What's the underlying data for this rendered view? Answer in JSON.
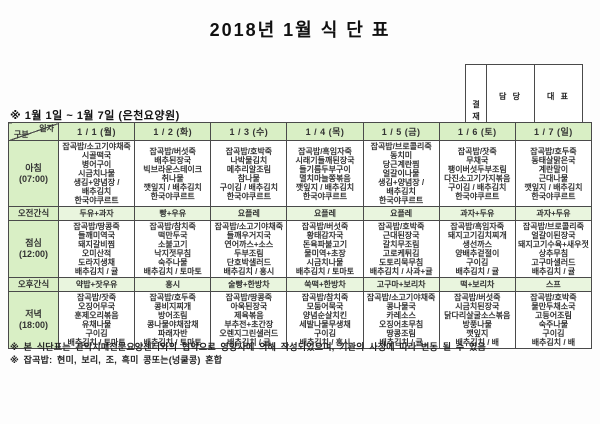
{
  "title": "2018년 1월 식 단 표",
  "approval": {
    "stamp_label": "결재",
    "columns": [
      "담 당",
      "대 표"
    ]
  },
  "period_note": "※ 1월 1일 ~ 1월 7일 (은천요양원)",
  "table": {
    "corner": {
      "top": "일자",
      "bottom": "구분"
    },
    "day_headers": [
      "1 / 1 (월)",
      "1 / 2 (화)",
      "1 / 3 (수)",
      "1 / 4 (목)",
      "1 / 5 (금)",
      "1 / 6 (토)",
      "1 / 7 (일)"
    ],
    "rows": [
      {
        "label": "아침",
        "time": "(07:00)",
        "type": "meal",
        "cells": [
          [
            "잡곡밥/소고기야채죽",
            "시골떡국",
            "병어구이",
            "시금치나물",
            "생김+양념장 /",
            "배추김치",
            "한국야쿠르트"
          ],
          [
            "잡곡밥/버섯죽",
            "배추된장국",
            "빅브라운스테이크",
            "취나물",
            "깻잎지 / 배추김치",
            "한국야쿠르트"
          ],
          [
            "잡곡밥/호박죽",
            "나박물김치",
            "메추리알조림",
            "참나물",
            "구이김 / 배추김치",
            "한국야쿠르트"
          ],
          [
            "잡곡밥/흑임자죽",
            "시래기들깨된장국",
            "들기름두부구이",
            "멸치마늘쫑볶음",
            "깻잎지 / 배추김치",
            "한국야쿠르트"
          ],
          [
            "잡곡밥/브로콜리죽",
            "동치미",
            "당근계란찜",
            "얼갈이나물",
            "생김+양념장 /",
            "배추김치",
            "한국야쿠르트"
          ],
          [
            "잡곡밥/잣죽",
            "무채국",
            "팽이버섯두부조림",
            "다진소고기가지볶음",
            "구이김 / 배추김치",
            "한국야쿠르트"
          ],
          [
            "잡곡밥/호두죽",
            "동태살맑은국",
            "계란말이",
            "근대나물",
            "깻잎지 / 배추김치",
            "한국야쿠르트"
          ]
        ]
      },
      {
        "label": "오전간식",
        "type": "snack",
        "cells": [
          "두유+과자",
          "빵+우유",
          "요플레",
          "요플레",
          "요플레",
          "과자+두유",
          "과자+두유"
        ]
      },
      {
        "label": "점심",
        "time": "(12:00)",
        "type": "meal",
        "cells": [
          [
            "잡곡밥/땅콩죽",
            "들깨미역국",
            "돼지갈비찜",
            "오미산적",
            "도라지생채",
            "배추김치 / 귤"
          ],
          [
            "잡곡밥/참치죽",
            "떡만두국",
            "소불고기",
            "낙지젓무침",
            "숙주나물",
            "배추김치 / 토마토"
          ],
          [
            "잡곡밥/소고기야채죽",
            "들깨우거지국",
            "연어까스+소스",
            "두부조림",
            "단호박샐러드",
            "배추김치 / 홍시"
          ],
          [
            "잡곡밥/버섯죽",
            "황태감자국",
            "돈육파불고기",
            "물미역+초장",
            "시금치나물",
            "배추김치 / 토마토"
          ],
          [
            "잡곡밥/호박죽",
            "근대된장국",
            "갈치무조림",
            "고로케튀김",
            "도토리묵무침",
            "배추김치 / 사과+귤"
          ],
          [
            "잡곡밥/흑임자죽",
            "돼지고기김치찌개",
            "생선까스",
            "양배추겉절이",
            "구이김",
            "배추김치 / 귤"
          ],
          [
            "잡곡밥/브로콜리죽",
            "얼갈이된장국",
            "돼지고기수육+새우젓",
            "상추무침",
            "고구마샐러드",
            "배추김치 / 귤"
          ]
        ]
      },
      {
        "label": "오후간식",
        "type": "snack",
        "cells": [
          "약밥+잣우유",
          "홍시",
          "술빵+한방차",
          "쑥떡+한방차",
          "고구마+보리차",
          "떡+보리차",
          "스프"
        ]
      },
      {
        "label": "저녁",
        "time": "(18:00)",
        "type": "meal",
        "cells": [
          [
            "잡곡밥/잣죽",
            "오징어무국",
            "훈제오리볶음",
            "유채나물",
            "구이김",
            "배추김치 / 토마토"
          ],
          [
            "잡곡밥/호두죽",
            "콩비지찌개",
            "방어조림",
            "콩나물야채잡채",
            "파래자반",
            "배추김치 / 토마토"
          ],
          [
            "잡곡밥/땅콩죽",
            "아욱된장국",
            "제육볶음",
            "부추전+초간장",
            "오렌지그린샐러드",
            "배추김치 / 귤"
          ],
          [
            "잡곡밥/참치죽",
            "모둠어묵국",
            "양념순살치킨",
            "세발나물무생채",
            "구이김",
            "배추김치 / 홍시"
          ],
          [
            "잡곡밥/소고기야채죽",
            "콩나물국",
            "카레소스",
            "오징어초무침",
            "땅콩조림",
            "배추김치 / 귤"
          ],
          [
            "잡곡밥/버섯죽",
            "시금치된장국",
            "닭다리살굴소스볶음",
            "방풍나물",
            "깻잎지",
            "배추김치 / 배"
          ],
          [
            "잡곡밥/호박죽",
            "물만두채소국",
            "고등어조림",
            "숙주나물",
            "구이김",
            "배추김치 / 배"
          ]
        ]
      }
    ]
  },
  "notes": [
    "※ 본 식단표는 관악치매전문요양센터와의 협약으로 영양사에 의해 작성되었으며, 기관의 사정에 따라 변동 될 수 있음",
    "※ 잡곡밥: 현미, 보리, 조, 흑미 콩또는(넝쿨콩) 혼합"
  ],
  "colors": {
    "header_bg": "#d9efc5",
    "snack_bg": "#e9f5de",
    "border": "#4a4a4a",
    "text": "#333333"
  }
}
